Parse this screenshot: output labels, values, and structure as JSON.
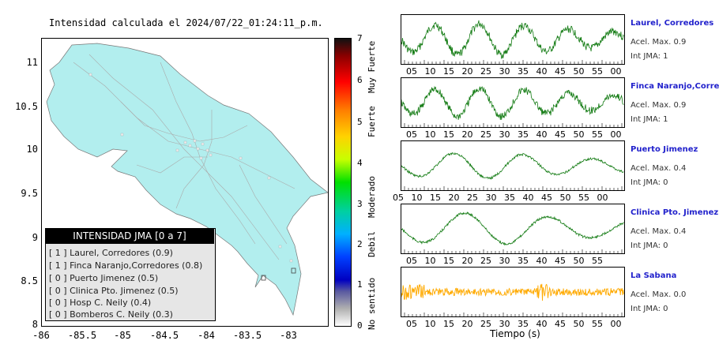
{
  "map": {
    "title": "Intensidad calculada el 2024/07/22_01:24:11_p.m.",
    "y_ticks": [
      "11",
      "10.5",
      "10",
      "9.5",
      "9",
      "8.5",
      "8"
    ],
    "x_ticks": [
      "-86",
      "-85.5",
      "-85",
      "-84.5",
      "-84",
      "-83.5",
      "-83"
    ],
    "land_color": "#b2eeee",
    "legend": {
      "title": "INTENSIDAD JMA [0 a 7]",
      "items": [
        "[ 1 ]  Laurel, Corredores (0.9)",
        "[ 1 ]  Finca Naranjo,Corredores (0.8)",
        "[ 0 ]  Puerto Jimenez (0.5)",
        "[ 0 ]  Clinica Pto. Jimenez (0.5)",
        "[ 0 ]  Hosp C. Neily (0.4)",
        "[ 0 ]  Bomberos C. Neily (0.3)"
      ]
    }
  },
  "colorbar": {
    "ticks": [
      "7",
      "6",
      "5",
      "4",
      "3",
      "2",
      "1",
      "0"
    ],
    "labels": [
      "Muy Fuerte",
      "Fuerte",
      "Moderado",
      "Debil",
      "No sentido"
    ]
  },
  "panels": [
    {
      "name": "Laurel, Corredores",
      "acel": "Acel. Max. 0.9",
      "int": "Int JMA: 1",
      "color": "#117a11",
      "ticks": [
        "05",
        "10",
        "15",
        "20",
        "25",
        "30",
        "35",
        "40",
        "45",
        "50",
        "55",
        "00"
      ]
    },
    {
      "name": "Finca Naranjo,Corredores",
      "acel": "Acel. Max. 0.9",
      "int": "Int JMA: 1",
      "color": "#117a11",
      "ticks": [
        "05",
        "10",
        "15",
        "20",
        "25",
        "30",
        "35",
        "40",
        "45",
        "50",
        "55",
        "00"
      ]
    },
    {
      "name": "Puerto Jimenez",
      "acel": "Acel. Max. 0.4",
      "int": "Int JMA: 0",
      "color": "#117a11",
      "ticks": [
        "05",
        "10",
        "15",
        "20",
        "25",
        "30",
        "35",
        "40",
        "45",
        "50",
        "55",
        "00"
      ]
    },
    {
      "name": "Clinica Pto. Jimenez",
      "acel": "Acel. Max. 0.4",
      "int": "Int JMA: 0",
      "color": "#117a11",
      "ticks": [
        "05",
        "10",
        "15",
        "20",
        "25",
        "30",
        "35",
        "40",
        "45",
        "50",
        "55"
      ]
    },
    {
      "name": "La Sabana",
      "acel": "Acel. Max. 0.0",
      "int": "Int JMA: 0",
      "color": "#ffaa00",
      "ticks": [
        "05",
        "10",
        "15",
        "20",
        "25",
        "30",
        "35",
        "40",
        "45",
        "50",
        "55",
        "00"
      ]
    }
  ],
  "xaxis_label": "Tiempo (s)",
  "chart_data": {
    "type": "line",
    "xlabel": "Tiempo (s)",
    "series": [
      {
        "name": "Laurel, Corredores",
        "acel_max": 0.9,
        "int_jma": 1
      },
      {
        "name": "Finca Naranjo,Corredores",
        "acel_max": 0.9,
        "int_jma": 1
      },
      {
        "name": "Puerto Jimenez",
        "acel_max": 0.4,
        "int_jma": 0
      },
      {
        "name": "Clinica Pto. Jimenez",
        "acel_max": 0.4,
        "int_jma": 0
      },
      {
        "name": "La Sabana",
        "acel_max": 0.0,
        "int_jma": 0
      }
    ]
  }
}
